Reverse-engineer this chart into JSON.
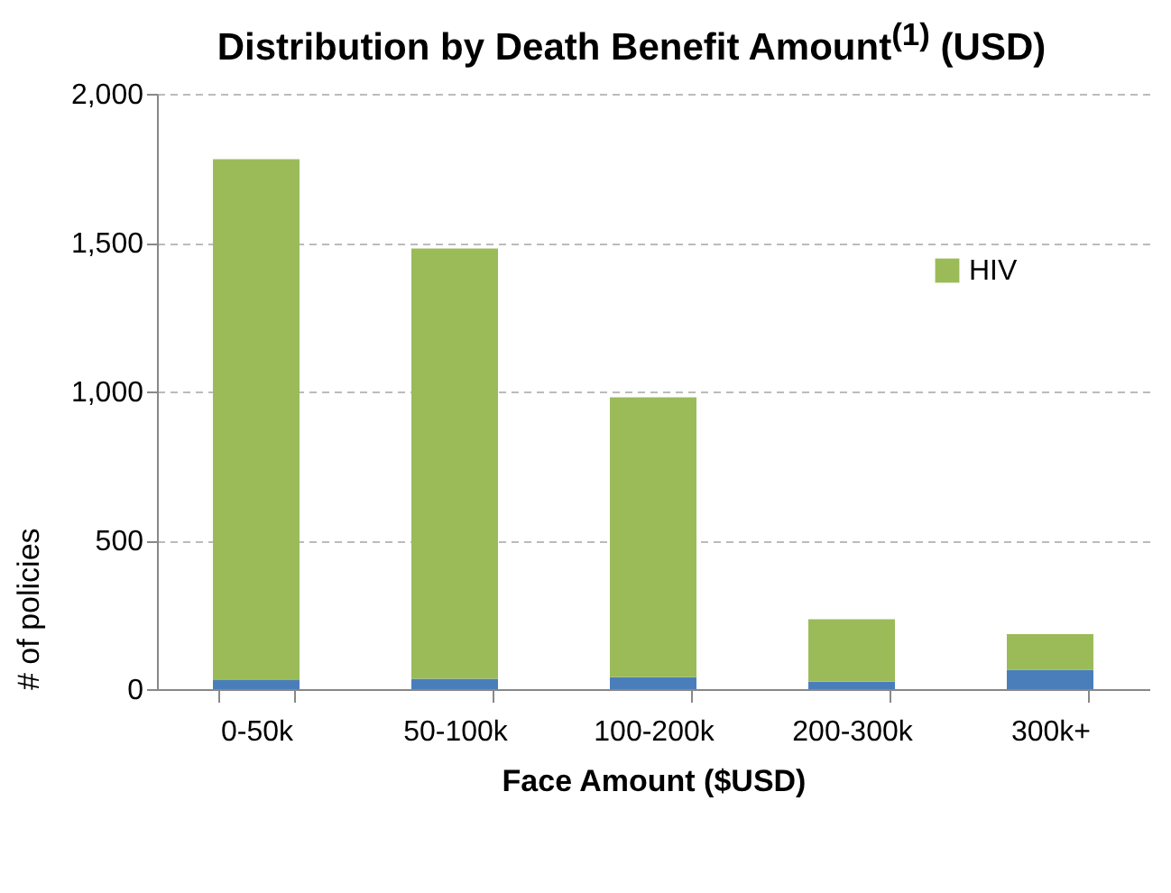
{
  "chart_data": {
    "type": "bar",
    "title": "Distribution by Death Benefit Amount$^{(1)}$ (USD)",
    "xlabel": "Face Amount ($USD)",
    "ylabel": "# of policies",
    "categories": [
      "0-50k",
      "50-100k",
      "100-200k",
      "200-300k",
      "300k+"
    ],
    "series": [
      {
        "color": "#4a7ebb",
        "values": [
          30,
          35,
          40,
          25,
          65
        ]
      },
      {
        "name": "HIV",
        "color": "#9bbb59",
        "values": [
          1750,
          1445,
          940,
          210,
          120
        ]
      }
    ],
    "stacked": true,
    "ylim": [
      0,
      2000
    ],
    "yticks": [
      0,
      {
        "value": 500,
        "label": "500"
      },
      {
        "value": 1000,
        "label": "1,000"
      },
      {
        "value": 1500,
        "label": "1,500"
      },
      {
        "value": 2000,
        "label": "2,000"
      }
    ],
    "grid": "y",
    "legend": "right"
  }
}
